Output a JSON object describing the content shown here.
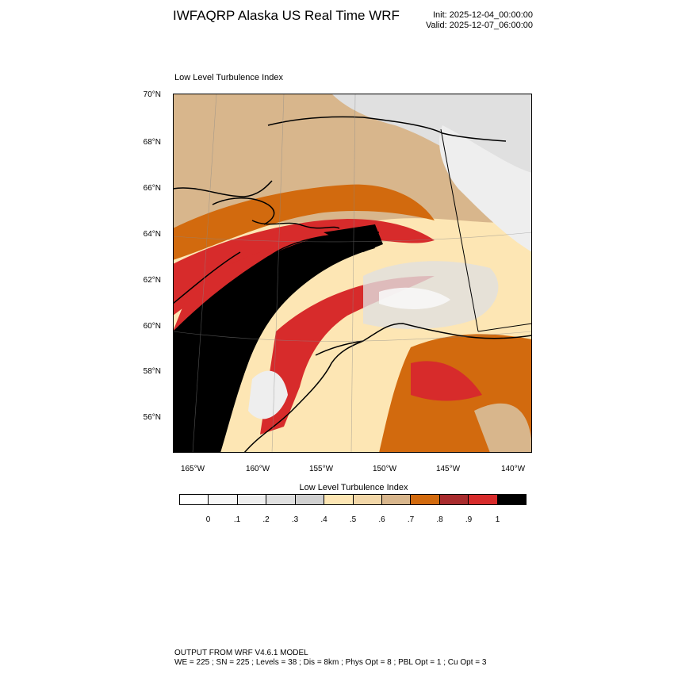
{
  "header": {
    "title": "IWFAQRP Alaska US Real Time WRF",
    "init": "Init: 2025-12-04_00:00:00",
    "valid": "Valid: 2025-12-07_06:00:00"
  },
  "field_label": "Low Level Turbulence Index",
  "lat_labels": [
    "70°N",
    "68°N",
    "66°N",
    "64°N",
    "62°N",
    "60°N",
    "58°N",
    "56°N"
  ],
  "lon_labels": [
    "165°W",
    "160°W",
    "155°W",
    "150°W",
    "145°W",
    "140°W"
  ],
  "colorbar": {
    "title": "Low Level Turbulence Index",
    "labels": [
      "0",
      ".1",
      ".2",
      ".3",
      ".4",
      ".5",
      ".6",
      ".7",
      ".8",
      ".9",
      "1"
    ],
    "colors": [
      "#ffffff",
      "#f7f7f7",
      "#eeeeee",
      "#e0e0e0",
      "#d0d0d0",
      "#fde6b4",
      "#f2d7a8",
      "#d8b68c",
      "#d26a0e",
      "#a92c2e",
      "#d72b2b",
      "#000000"
    ]
  },
  "footer": {
    "line1": "OUTPUT FROM WRF V4.6.1 MODEL",
    "line2": "WE = 225 ; SN = 225 ; Levels = 38 ; Dis = 8km ; Phys Opt = 8 ; PBL Opt = 1 ; Cu Opt = 3"
  }
}
